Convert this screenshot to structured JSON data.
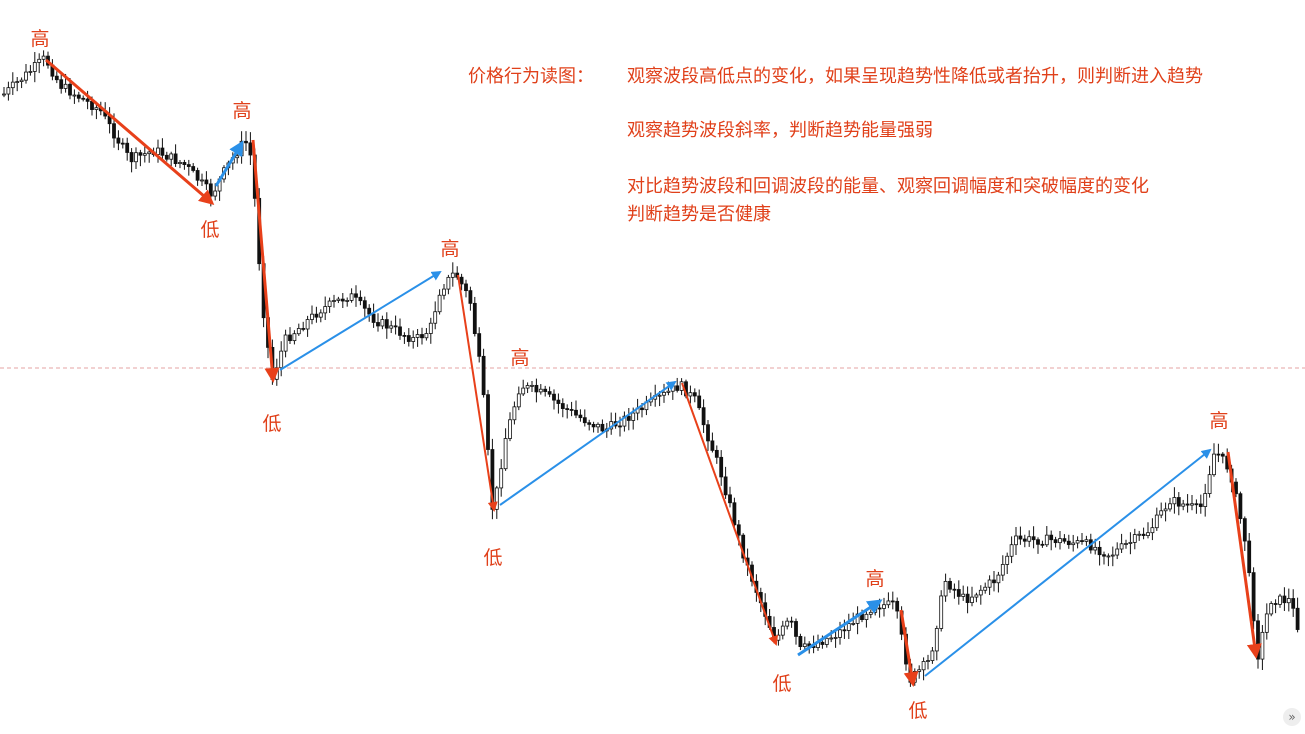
{
  "notes": {
    "title": "价格行为读图：",
    "line1": "观察波段高低点的变化，如果呈现趋势性降低或者抬升，则判断进入趋势",
    "line2": "观察趋势波段斜率，判断趋势能量强弱",
    "line3": "对比趋势波段和回调波段的能量、观察回调幅度和突破幅度的变化",
    "line4": "判断趋势是否健康"
  },
  "labels": {
    "high": "高",
    "low": "低"
  },
  "colors": {
    "background": "#ffffff",
    "candle": "#111111",
    "text": "#e0401a",
    "impulse_arrow": "#e8401a",
    "correction_arrow": "#2a90e8",
    "reference_line": "#e6a3a3"
  },
  "next_icon": "»",
  "chart_data": {
    "type": "candlestick",
    "title": "",
    "xlabel": "",
    "ylabel": "",
    "grid": false,
    "description_levels": "swing sequence of highs (高) and lows (低) in a descending trend",
    "swings": [
      {
        "type": "high",
        "label": "高"
      },
      {
        "type": "low",
        "label": "低"
      },
      {
        "type": "high",
        "label": "高"
      },
      {
        "type": "low",
        "label": "低"
      },
      {
        "type": "high",
        "label": "高"
      },
      {
        "type": "low",
        "label": "低"
      },
      {
        "type": "high",
        "label": "高"
      },
      {
        "type": "low",
        "label": "低"
      },
      {
        "type": "high",
        "label": "高"
      },
      {
        "type": "low",
        "label": "低"
      },
      {
        "type": "high",
        "label": "高"
      }
    ],
    "legs": [
      {
        "direction": "down",
        "color": "impulse"
      },
      {
        "direction": "up",
        "color": "correction"
      },
      {
        "direction": "down",
        "color": "impulse"
      },
      {
        "direction": "up",
        "color": "correction"
      },
      {
        "direction": "down",
        "color": "impulse"
      },
      {
        "direction": "up",
        "color": "correction"
      },
      {
        "direction": "down",
        "color": "impulse"
      },
      {
        "direction": "up",
        "color": "correction"
      },
      {
        "direction": "down",
        "color": "impulse"
      },
      {
        "direction": "up",
        "color": "correction"
      },
      {
        "direction": "down",
        "color": "impulse"
      }
    ]
  }
}
